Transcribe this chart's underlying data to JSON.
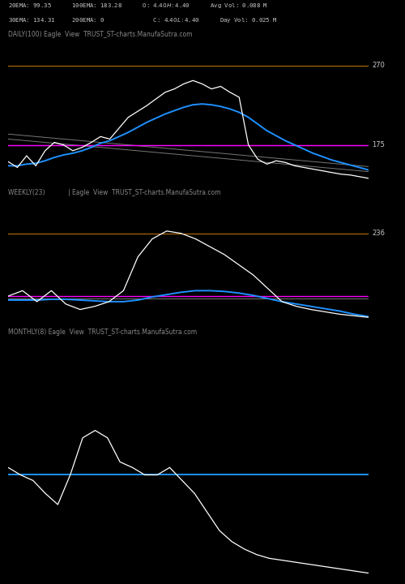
{
  "bg_color": "#000000",
  "text_color": "#c8c8c8",
  "header_line1": "20EMA: 99.35      100EMA: 183.28      O: $4.40      H: $4.40      Avg Vol: 0.088 M",
  "header_line2": "30EMA: 134.31     200EMA: 0              C: $4.40      L: $4.40      Day Vol: 0.025 M",
  "panel1_label": "DAILY(100) Eagle  View  TRUST_ST-charts.ManufaSutra.com",
  "panel2_label": "WEEKLY(23)            | Eagle  View  TRUST_ST-charts.ManufaSutra.com",
  "panel3_label": "MONTHLY(8) Eagle  View  TRUST_ST-charts.ManufaSutra.com",
  "panel1": {
    "ylim": [
      130,
      295
    ],
    "hline_orange": 270,
    "hline_magenta": 175,
    "label_270": "270",
    "label_175": "175",
    "price": [
      155,
      148,
      162,
      150,
      168,
      178,
      175,
      168,
      172,
      178,
      185,
      182,
      195,
      208,
      215,
      222,
      230,
      238,
      242,
      248,
      252,
      248,
      242,
      245,
      238,
      232,
      175,
      158,
      152,
      156,
      154,
      150,
      148,
      146,
      144,
      142,
      140,
      139,
      137,
      135
    ],
    "blue": [
      150,
      150,
      152,
      153,
      156,
      160,
      163,
      165,
      168,
      172,
      177,
      180,
      185,
      190,
      196,
      202,
      207,
      212,
      216,
      220,
      223,
      224,
      223,
      221,
      218,
      214,
      208,
      200,
      192,
      186,
      180,
      175,
      170,
      165,
      161,
      157,
      154,
      151,
      148,
      145
    ],
    "gray1": [
      188,
      187,
      186,
      185,
      184,
      183,
      182,
      181,
      180,
      179,
      178,
      177,
      176,
      175,
      174,
      173,
      172,
      171,
      170,
      169,
      168,
      167,
      166,
      165,
      164,
      163,
      162,
      161,
      160,
      159,
      158,
      157,
      156,
      155,
      154,
      153,
      152,
      151,
      150,
      149
    ],
    "gray2": [
      182,
      181,
      180,
      179,
      178,
      177,
      176,
      175,
      174,
      173,
      172,
      171,
      170,
      169,
      168,
      167,
      166,
      165,
      164,
      163,
      162,
      161,
      160,
      159,
      158,
      157,
      156,
      155,
      154,
      153,
      152,
      151,
      150,
      149,
      148,
      147,
      146,
      145,
      144,
      143
    ],
    "magenta_line": [
      175,
      175,
      175,
      175,
      175,
      175,
      175,
      175,
      175,
      175,
      175,
      175,
      175,
      175,
      175,
      175,
      175,
      175,
      175,
      175,
      175,
      175,
      175,
      175,
      175,
      175,
      175,
      175,
      175,
      175,
      175,
      175,
      175,
      175,
      175,
      175,
      175,
      175,
      175,
      175
    ]
  },
  "panel2": {
    "ylim": [
      140,
      295
    ],
    "hline_orange": 255,
    "hline_magenta": 175,
    "label_236": "236",
    "price": [
      175,
      182,
      168,
      182,
      165,
      158,
      162,
      168,
      182,
      225,
      248,
      258,
      255,
      248,
      238,
      228,
      215,
      202,
      185,
      168,
      162,
      158,
      155,
      152,
      150,
      148
    ],
    "blue": [
      170,
      170,
      170,
      171,
      171,
      170,
      169,
      168,
      168,
      170,
      174,
      177,
      180,
      182,
      182,
      181,
      179,
      176,
      172,
      168,
      165,
      162,
      159,
      156,
      152,
      149
    ],
    "gray_flat": [
      172,
      172,
      172,
      172,
      172,
      172,
      172,
      172,
      172,
      172,
      172,
      172,
      172,
      172,
      172,
      172,
      172,
      172,
      172,
      172,
      172,
      172,
      172,
      172,
      172,
      172
    ]
  },
  "panel3": {
    "ylim": [
      90,
      220
    ],
    "hline_blue": 148,
    "price": [
      152,
      148,
      145,
      138,
      132,
      148,
      168,
      172,
      168,
      155,
      152,
      148,
      148,
      152,
      145,
      138,
      128,
      118,
      112,
      108,
      105,
      103,
      102,
      101,
      100,
      99,
      98,
      97,
      96,
      95
    ],
    "blue_flat": [
      148,
      148,
      148,
      148,
      148,
      148,
      148,
      148,
      148,
      148,
      148,
      148,
      148,
      148,
      148,
      148,
      148,
      148,
      148,
      148,
      148,
      148,
      148,
      148,
      148,
      148,
      148,
      148,
      148,
      148
    ]
  }
}
